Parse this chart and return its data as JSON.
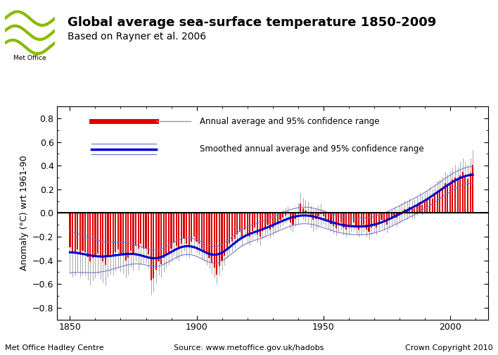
{
  "title": "Global average sea-surface temperature 1850-2009",
  "subtitle": "Based on Rayner et al. 2006",
  "ylabel": "Anomaly (°C) wrt 1961-90",
  "ylim": [
    -0.9,
    0.9
  ],
  "xlim": [
    1845,
    2015
  ],
  "xticks": [
    1850,
    1900,
    1950,
    2000
  ],
  "yticks": [
    -0.8,
    -0.6,
    -0.4,
    -0.2,
    0.0,
    0.2,
    0.4,
    0.6,
    0.8
  ],
  "footer_left": "Met Office Hadley Centre",
  "footer_center": "Source: www.metoffice.gov.uk/hadobs",
  "footer_right": "Crown Copyright 2010",
  "legend_line1": "Annual average and 95% confidence range",
  "legend_line2": "Smoothed annual average and 95% confidence range",
  "bar_color": "#dd0000",
  "smooth_color": "#0000cc",
  "smooth_band_color": "#7777cc",
  "errorbar_color": "#999999",
  "background_color": "#ffffff",
  "title_color": "#000000",
  "title_fontsize": 13,
  "subtitle_fontsize": 10
}
